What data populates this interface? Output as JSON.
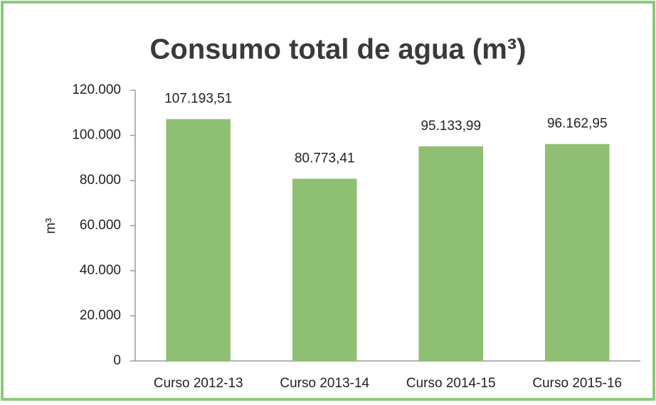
{
  "chart_data": {
    "type": "bar",
    "title": "Consumo total de agua (m³)",
    "ylabel": "m³",
    "categories": [
      "Curso 2012-13",
      "Curso 2013-14",
      "Curso 2014-15",
      "Curso 2015-16"
    ],
    "values": [
      107193.51,
      80773.41,
      95133.99,
      96162.95
    ],
    "value_labels": [
      "107.193,51",
      "80.773,41",
      "95.133,99",
      "96.162,95"
    ],
    "color": "#8fbf72",
    "ylim": [
      0,
      120000
    ],
    "yticks": [
      0,
      {
        "value": 20000,
        "label": "20.000"
      },
      {
        "value": 40000,
        "label": "40.000"
      },
      {
        "value": 60000,
        "label": "60.000"
      },
      {
        "value": 80000,
        "label": "80.000"
      },
      {
        "value": 100000,
        "label": "100.000"
      },
      {
        "value": 120000,
        "label": "120.000"
      }
    ],
    "grid": false
  }
}
